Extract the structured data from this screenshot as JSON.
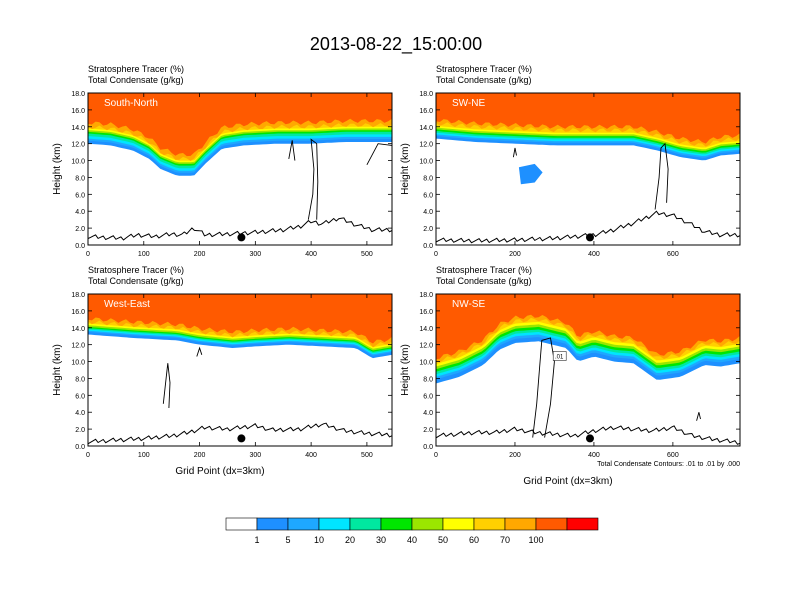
{
  "title": "2013-08-22_15:00:00",
  "colors": {
    "levels": [
      "#ffffff",
      "#1e90ff",
      "#1ea8ff",
      "#00e5ff",
      "#00e8a0",
      "#00e600",
      "#9be600",
      "#ffff00",
      "#ffd000",
      "#ffa800",
      "#ff5a00",
      "#ff0000"
    ]
  },
  "chart_data": [
    {
      "type": "heatmap",
      "name": "South-North",
      "label": "South-North",
      "title_lines": [
        "Stratosphere Tracer   (%)",
        "Total Condensate   (g/kg)"
      ],
      "ylabel": "Height (km)",
      "xlabel": "",
      "xlim": [
        0,
        545
      ],
      "ylim": [
        0,
        18
      ],
      "xticks": [
        0,
        100,
        200,
        300,
        400,
        500
      ],
      "yticks": [
        "0.0",
        "2.0",
        "4.0",
        "6.0",
        "8.0",
        "10.0",
        "12.0",
        "14.0",
        "16.0",
        "18.0"
      ],
      "tracer_bottom_km": [
        [
          0,
          12.0
        ],
        [
          40,
          11.8
        ],
        [
          80,
          11.2
        ],
        [
          110,
          10.2
        ],
        [
          130,
          9.0
        ],
        [
          160,
          8.2
        ],
        [
          190,
          8.2
        ],
        [
          210,
          9.6
        ],
        [
          240,
          11.4
        ],
        [
          280,
          11.8
        ],
        [
          340,
          12.0
        ],
        [
          400,
          12.0
        ],
        [
          460,
          12.2
        ],
        [
          520,
          12.2
        ],
        [
          545,
          12.2
        ]
      ],
      "band_step_km": [
        0.35,
        0.6,
        0.9,
        1.2,
        1.4,
        1.6,
        1.8,
        2.0,
        2.5,
        3.2
      ],
      "terrain_km": [
        [
          0,
          1.0
        ],
        [
          30,
          0.9
        ],
        [
          60,
          0.8
        ],
        [
          90,
          1.2
        ],
        [
          120,
          1.0
        ],
        [
          150,
          1.3
        ],
        [
          170,
          1.2
        ],
        [
          190,
          2.0
        ],
        [
          210,
          1.2
        ],
        [
          250,
          1.3
        ],
        [
          300,
          1.5
        ],
        [
          350,
          1.8
        ],
        [
          380,
          2.2
        ],
        [
          400,
          2.8
        ],
        [
          420,
          2.5
        ],
        [
          450,
          3.2
        ],
        [
          480,
          2.4
        ],
        [
          510,
          1.8
        ],
        [
          545,
          1.8
        ]
      ],
      "marker_x": 275,
      "condensate_contours": [
        [
          [
            395,
            3.0
          ],
          [
            403,
            6.0
          ],
          [
            405,
            9.0
          ],
          [
            400,
            12.5
          ],
          [
            410,
            12.0
          ],
          [
            412,
            7.5
          ],
          [
            410,
            3.0
          ]
        ],
        [
          [
            360,
            10.2
          ],
          [
            366,
            12.4
          ],
          [
            371,
            10.0
          ]
        ],
        [
          [
            500,
            9.5
          ],
          [
            520,
            12.0
          ],
          [
            545,
            11.8
          ]
        ]
      ]
    },
    {
      "type": "heatmap",
      "name": "SW-NE",
      "label": "SW-NE",
      "title_lines": [
        "Stratosphere Tracer   (%)",
        "Total Condensate   (g/kg)"
      ],
      "ylabel": "Height (km)",
      "xlabel": "",
      "xlim": [
        0,
        770
      ],
      "ylim": [
        0,
        18
      ],
      "xticks": [
        0,
        200,
        400,
        600
      ],
      "yticks": [
        "0.0",
        "2.0",
        "4.0",
        "6.0",
        "8.0",
        "10.0",
        "12.0",
        "14.0",
        "16.0",
        "18.0"
      ],
      "tracer_bottom_km": [
        [
          0,
          12.6
        ],
        [
          100,
          12.2
        ],
        [
          200,
          12.0
        ],
        [
          300,
          11.8
        ],
        [
          400,
          11.8
        ],
        [
          500,
          11.8
        ],
        [
          560,
          11.2
        ],
        [
          620,
          10.4
        ],
        [
          680,
          10.0
        ],
        [
          720,
          10.6
        ],
        [
          770,
          10.8
        ]
      ],
      "band_step_km": [
        0.3,
        0.5,
        0.7,
        0.9,
        1.1,
        1.3,
        1.5,
        1.8,
        2.2,
        2.8
      ],
      "blob": [
        [
          210,
          9.2
        ],
        [
          250,
          9.6
        ],
        [
          270,
          8.6
        ],
        [
          250,
          7.4
        ],
        [
          215,
          7.2
        ]
      ],
      "terrain_km": [
        [
          0,
          0.6
        ],
        [
          100,
          0.5
        ],
        [
          200,
          0.6
        ],
        [
          300,
          0.8
        ],
        [
          350,
          1.0
        ],
        [
          400,
          1.2
        ],
        [
          450,
          1.8
        ],
        [
          500,
          2.6
        ],
        [
          560,
          3.8
        ],
        [
          600,
          3.5
        ],
        [
          640,
          2.6
        ],
        [
          680,
          1.6
        ],
        [
          720,
          1.2
        ],
        [
          770,
          1.2
        ]
      ],
      "marker_x": 390,
      "condensate_contours": [
        [
          [
            555,
            4.2
          ],
          [
            565,
            8.0
          ],
          [
            570,
            11.5
          ],
          [
            580,
            12.0
          ],
          [
            588,
            9.0
          ],
          [
            584,
            5.0
          ]
        ],
        [
          [
            196,
            10.4
          ],
          [
            200,
            11.5
          ],
          [
            204,
            10.6
          ]
        ]
      ]
    },
    {
      "type": "heatmap",
      "name": "West-East",
      "label": "West-East",
      "title_lines": [
        "Stratosphere Tracer   (%)",
        "Total Condensate   (g/kg)"
      ],
      "ylabel": "Height (km)",
      "xlabel": "Grid Point (dx=3km)",
      "xlim": [
        0,
        545
      ],
      "ylim": [
        0,
        18
      ],
      "xticks": [
        0,
        100,
        200,
        300,
        400,
        500
      ],
      "yticks": [
        "0.0",
        "2.0",
        "4.0",
        "6.0",
        "8.0",
        "10.0",
        "12.0",
        "14.0",
        "16.0",
        "18.0"
      ],
      "tracer_bottom_km": [
        [
          0,
          13.2
        ],
        [
          80,
          12.8
        ],
        [
          160,
          12.5
        ],
        [
          200,
          12.0
        ],
        [
          260,
          11.6
        ],
        [
          300,
          11.8
        ],
        [
          360,
          12.0
        ],
        [
          420,
          11.8
        ],
        [
          480,
          11.6
        ],
        [
          510,
          10.4
        ],
        [
          545,
          10.8
        ]
      ],
      "band_step_km": [
        0.3,
        0.45,
        0.6,
        0.75,
        0.9,
        1.1,
        1.3,
        1.5,
        1.9,
        2.4
      ],
      "terrain_km": [
        [
          0,
          0.5
        ],
        [
          50,
          0.7
        ],
        [
          100,
          0.9
        ],
        [
          150,
          1.2
        ],
        [
          180,
          1.6
        ],
        [
          210,
          2.2
        ],
        [
          250,
          2.0
        ],
        [
          300,
          2.4
        ],
        [
          330,
          1.9
        ],
        [
          380,
          2.0
        ],
        [
          420,
          2.6
        ],
        [
          460,
          1.8
        ],
        [
          500,
          1.5
        ],
        [
          545,
          1.3
        ]
      ],
      "marker_x": 275,
      "condensate_contours": [
        [
          [
            135,
            5.0
          ],
          [
            140,
            8.0
          ],
          [
            143,
            9.8
          ],
          [
            147,
            7.5
          ],
          [
            145,
            4.5
          ]
        ],
        [
          [
            195,
            10.6
          ],
          [
            200,
            11.6
          ],
          [
            204,
            10.8
          ]
        ]
      ]
    },
    {
      "type": "heatmap",
      "name": "NW-SE",
      "label": "NW-SE",
      "title_lines": [
        "Stratosphere Tracer   (%)",
        "Total Condensate   (g/kg)"
      ],
      "ylabel": "Height (km)",
      "xlabel": "Grid Point (dx=3km)",
      "xlim": [
        0,
        770
      ],
      "ylim": [
        0,
        18
      ],
      "xticks": [
        0,
        200,
        400,
        600
      ],
      "yticks": [
        "0.0",
        "2.0",
        "4.0",
        "6.0",
        "8.0",
        "10.0",
        "12.0",
        "14.0",
        "16.0",
        "18.0"
      ],
      "tracer_bottom_km": [
        [
          0,
          7.4
        ],
        [
          60,
          8.2
        ],
        [
          120,
          9.6
        ],
        [
          160,
          11.4
        ],
        [
          200,
          12.2
        ],
        [
          260,
          12.4
        ],
        [
          330,
          11.6
        ],
        [
          360,
          10.0
        ],
        [
          400,
          10.6
        ],
        [
          450,
          10.0
        ],
        [
          500,
          9.8
        ],
        [
          560,
          7.8
        ],
        [
          620,
          8.2
        ],
        [
          680,
          9.6
        ],
        [
          720,
          9.4
        ],
        [
          770,
          9.8
        ]
      ],
      "band_step_km": [
        0.5,
        0.8,
        1.1,
        1.4,
        1.7,
        2.0,
        2.3,
        2.6,
        3.0,
        3.5
      ],
      "terrain_km": [
        [
          0,
          1.2
        ],
        [
          50,
          1.4
        ],
        [
          100,
          1.6
        ],
        [
          150,
          1.6
        ],
        [
          200,
          2.0
        ],
        [
          250,
          1.6
        ],
        [
          300,
          1.4
        ],
        [
          350,
          1.2
        ],
        [
          400,
          1.8
        ],
        [
          450,
          2.2
        ],
        [
          500,
          2.0
        ],
        [
          550,
          1.8
        ],
        [
          600,
          2.2
        ],
        [
          650,
          1.2
        ],
        [
          700,
          0.8
        ],
        [
          770,
          0.4
        ]
      ],
      "marker_x": 390,
      "condensate_contours": [
        [
          [
            245,
            1.0
          ],
          [
            255,
            5.0
          ],
          [
            262,
            9.0
          ],
          [
            268,
            12.5
          ],
          [
            290,
            12.8
          ],
          [
            300,
            10.0
          ],
          [
            290,
            5.0
          ],
          [
            275,
            1.0
          ]
        ],
        [
          [
            660,
            3.0
          ],
          [
            666,
            4.0
          ],
          [
            670,
            3.2
          ]
        ]
      ],
      "contour_label": ".01",
      "footnote": "Total Condensate Contours: .01 to .01 by .000"
    }
  ],
  "colorbar": {
    "labels": [
      "1",
      "5",
      "10",
      "20",
      "30",
      "40",
      "50",
      "60",
      "70",
      "100"
    ]
  }
}
